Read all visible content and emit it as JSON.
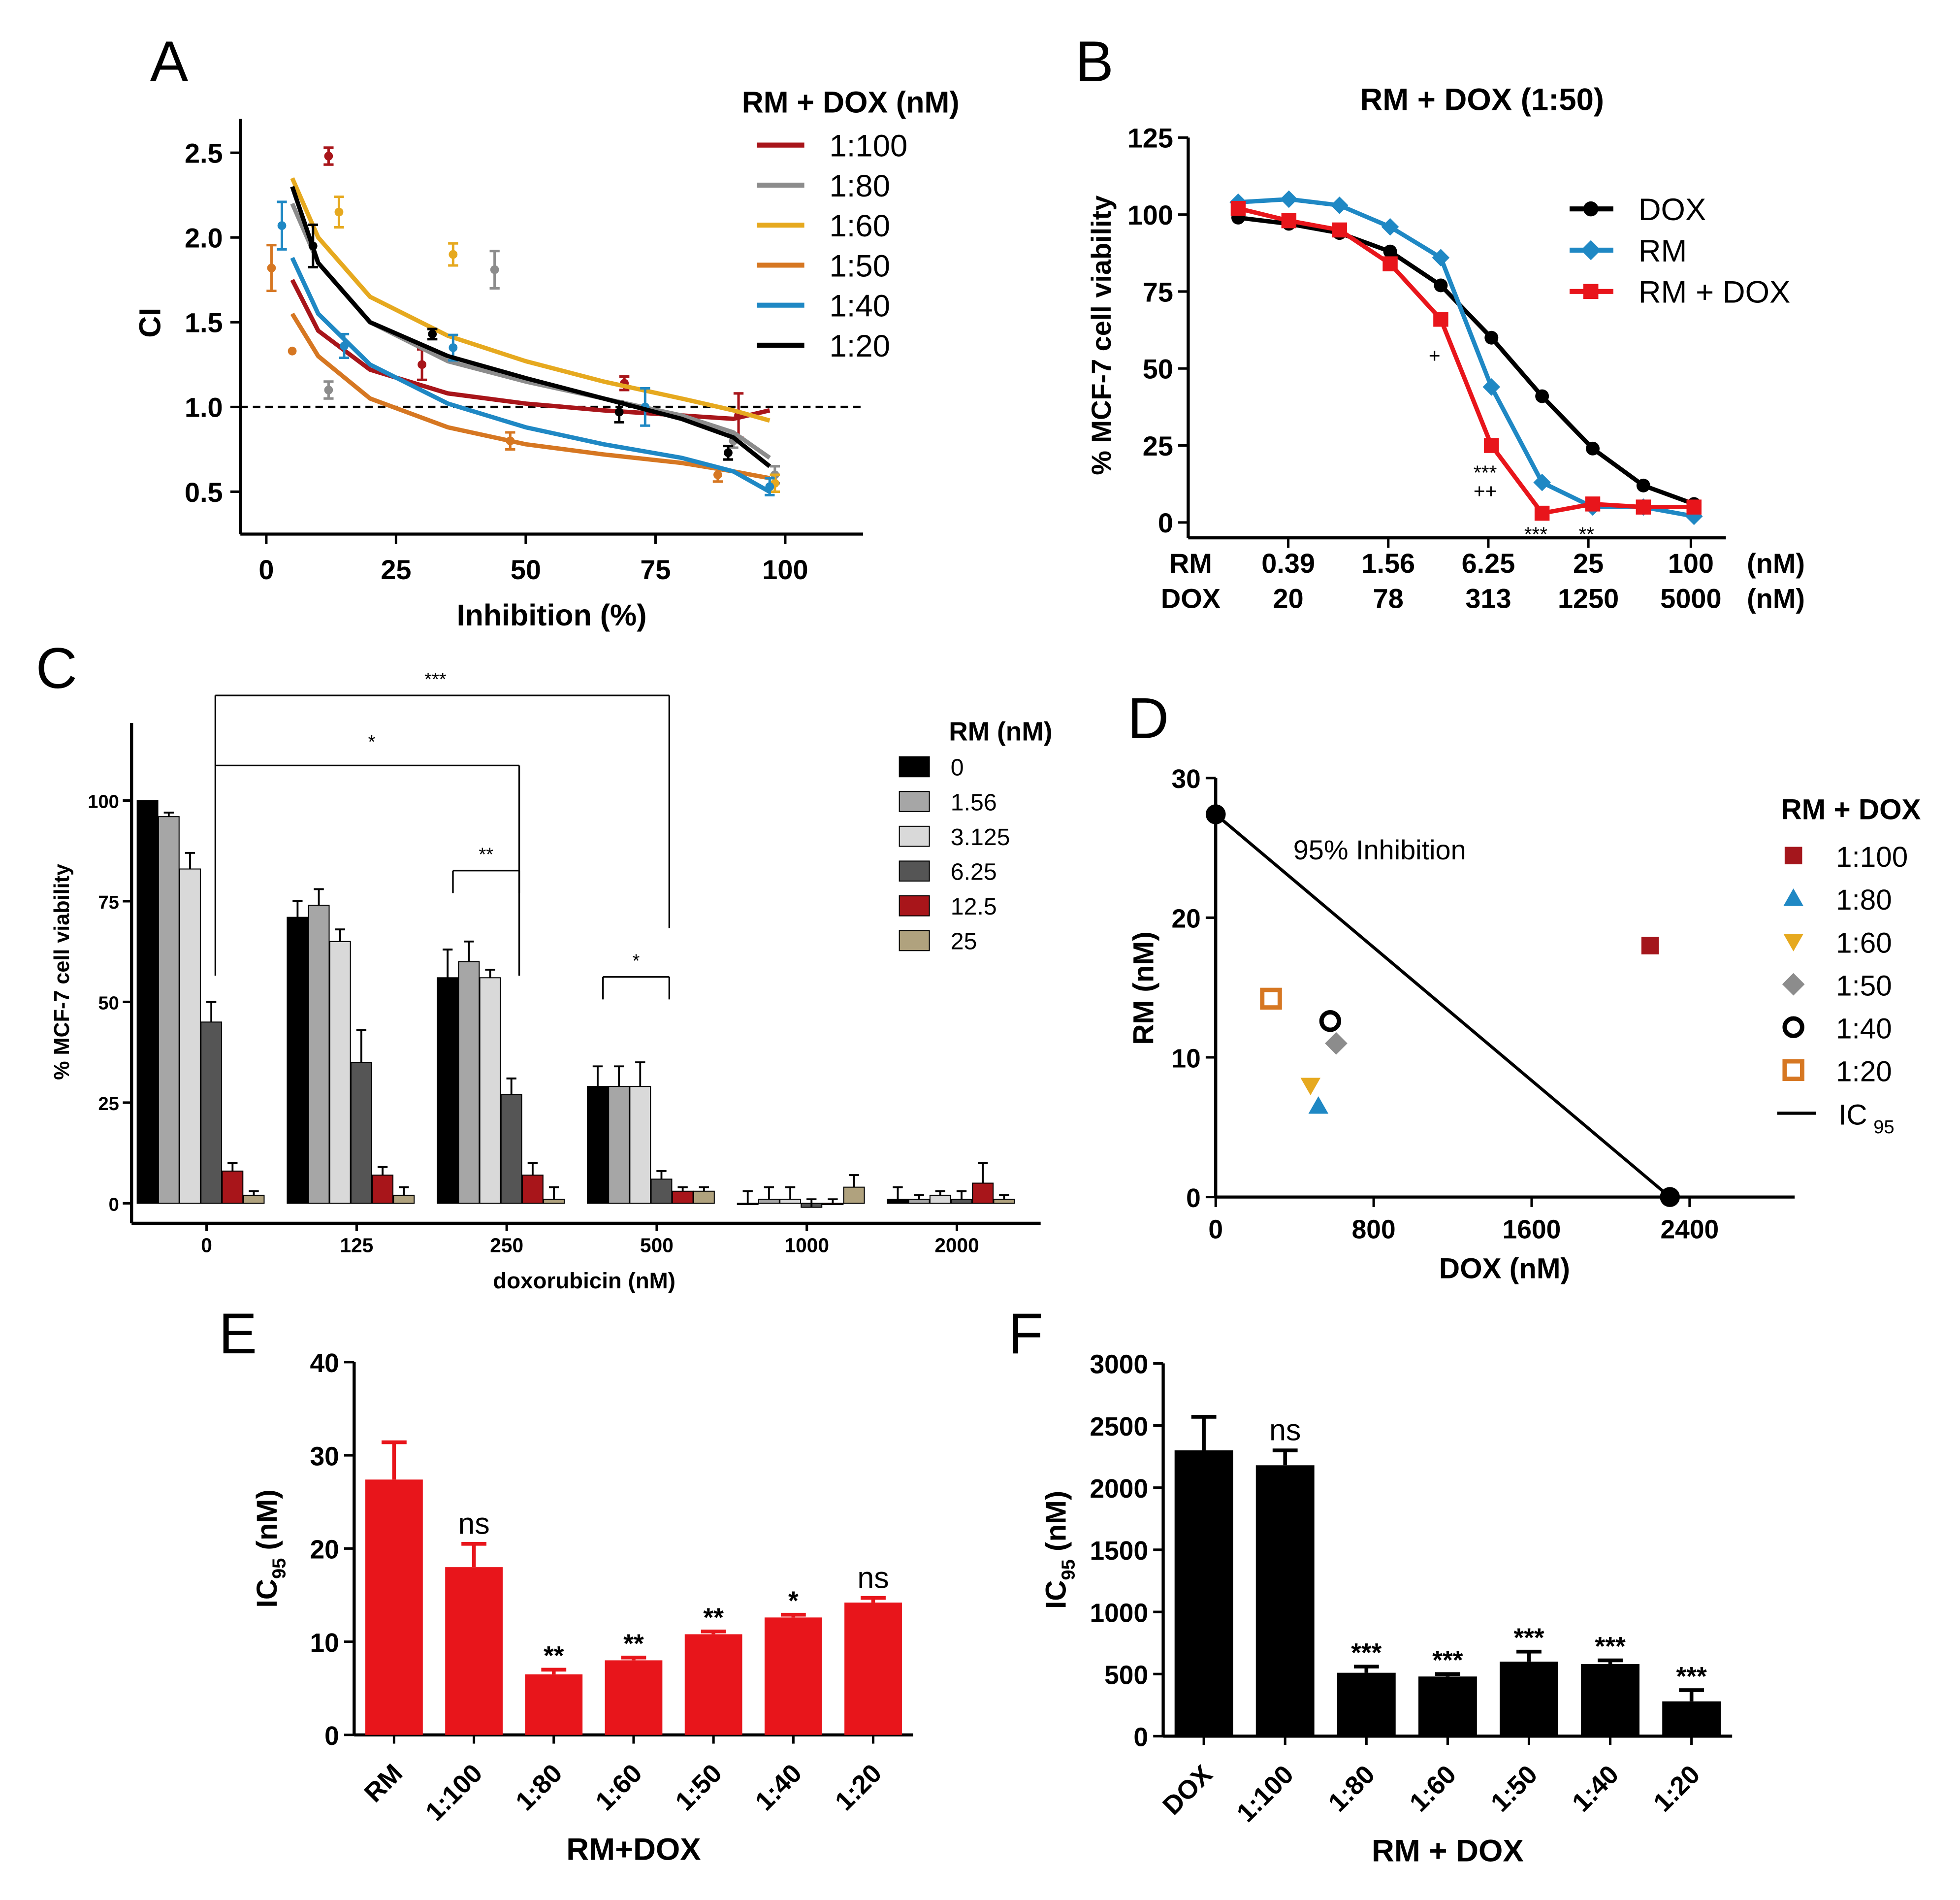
{
  "colors": {
    "black": "#000000",
    "gray": "#8c8c8c",
    "light_gray": "#d9d9d9",
    "mid_gray": "#a6a6a6",
    "dark_gray": "#555555",
    "dark_red": "#a8151a",
    "red": "#e8151b",
    "blue": "#1f88c4",
    "yellow": "#e6a91f",
    "orange": "#d67722",
    "tan": "#b0a27e",
    "square_red": "#a4161c",
    "tri_blue": "#1f88c4",
    "tri_yellow": "#e6a91f",
    "diamond_gray": "#8c8c8c",
    "sq_orange": "#d67722"
  },
  "chart_data": [
    {
      "panel": "A",
      "type": "scatter",
      "title": "",
      "xlabel": "Inhibition (%)",
      "ylabel": "CI",
      "xlim": [
        -5,
        115
      ],
      "ylim": [
        0.25,
        2.7
      ],
      "xticks": [
        "0",
        "25",
        "50",
        "75",
        "100"
      ],
      "yticks": [
        "0.5",
        "1.0",
        "1.5",
        "2.0",
        "2.5"
      ],
      "reference_line": 1.0,
      "legend_title": "RM + DOX (nM)",
      "series": [
        {
          "name": "1:100",
          "color": "#a8151a",
          "points": [
            [
              12,
              2.48,
              0.1
            ],
            [
              30,
              1.25,
              0.18
            ],
            [
              69,
              1.14,
              0.08
            ],
            [
              91,
              0.95,
              0.26
            ]
          ],
          "curve": [
            [
              5,
              1.75
            ],
            [
              10,
              1.45
            ],
            [
              20,
              1.22
            ],
            [
              35,
              1.08
            ],
            [
              50,
              1.02
            ],
            [
              65,
              0.98
            ],
            [
              80,
              0.95
            ],
            [
              90,
              0.93
            ],
            [
              97,
              0.98
            ]
          ]
        },
        {
          "name": "1:80",
          "color": "#8c8c8c",
          "points": [
            [
              12,
              1.1,
              0.1
            ],
            [
              44,
              1.81,
              0.22
            ],
            [
              90,
              0.8,
              0.08
            ],
            [
              98,
              0.6,
              0.1
            ]
          ],
          "curve": [
            [
              5,
              2.2
            ],
            [
              10,
              1.85
            ],
            [
              20,
              1.5
            ],
            [
              35,
              1.27
            ],
            [
              50,
              1.15
            ],
            [
              65,
              1.05
            ],
            [
              80,
              0.95
            ],
            [
              90,
              0.85
            ],
            [
              97,
              0.7
            ]
          ]
        },
        {
          "name": "1:60",
          "color": "#e6a91f",
          "points": [
            [
              14,
              2.15,
              0.18
            ],
            [
              36,
              1.9,
              0.13
            ],
            [
              98,
              0.55,
              0.1
            ]
          ],
          "curve": [
            [
              5,
              2.35
            ],
            [
              10,
              2.0
            ],
            [
              20,
              1.65
            ],
            [
              35,
              1.42
            ],
            [
              50,
              1.27
            ],
            [
              65,
              1.15
            ],
            [
              80,
              1.05
            ],
            [
              90,
              0.98
            ],
            [
              97,
              0.92
            ]
          ]
        },
        {
          "name": "1:50",
          "color": "#d67722",
          "points": [
            [
              1,
              1.82,
              0.27
            ],
            [
              5,
              1.33,
              0
            ],
            [
              47,
              0.8,
              0.1
            ],
            [
              87,
              0.6,
              0.08
            ]
          ],
          "curve": [
            [
              5,
              1.55
            ],
            [
              10,
              1.3
            ],
            [
              20,
              1.05
            ],
            [
              35,
              0.88
            ],
            [
              50,
              0.78
            ],
            [
              65,
              0.72
            ],
            [
              80,
              0.67
            ],
            [
              90,
              0.62
            ],
            [
              97,
              0.58
            ]
          ]
        },
        {
          "name": "1:40",
          "color": "#1f88c4",
          "points": [
            [
              3,
              2.07,
              0.28
            ],
            [
              15,
              1.36,
              0.14
            ],
            [
              36,
              1.35,
              0.15
            ],
            [
              73,
              1.0,
              0.22
            ],
            [
              97,
              0.53,
              0.1
            ]
          ],
          "curve": [
            [
              5,
              1.88
            ],
            [
              10,
              1.55
            ],
            [
              20,
              1.25
            ],
            [
              35,
              1.02
            ],
            [
              50,
              0.88
            ],
            [
              65,
              0.78
            ],
            [
              80,
              0.7
            ],
            [
              90,
              0.62
            ],
            [
              97,
              0.5
            ]
          ]
        },
        {
          "name": "1:20",
          "color": "#000000",
          "points": [
            [
              9,
              1.95,
              0.25
            ],
            [
              32,
              1.43,
              0.06
            ],
            [
              68,
              0.97,
              0.12
            ],
            [
              89,
              0.73,
              0.08
            ]
          ],
          "curve": [
            [
              5,
              2.3
            ],
            [
              10,
              1.85
            ],
            [
              20,
              1.5
            ],
            [
              35,
              1.3
            ],
            [
              50,
              1.17
            ],
            [
              65,
              1.05
            ],
            [
              80,
              0.93
            ],
            [
              90,
              0.82
            ],
            [
              97,
              0.65
            ]
          ]
        }
      ]
    },
    {
      "panel": "B",
      "type": "line",
      "title": "RM + DOX (1:50)",
      "xlabel": "",
      "ylabel": "% MCF-7 cell viability",
      "ylim": [
        -5,
        125
      ],
      "yticks": [
        "0",
        "25",
        "50",
        "75",
        "100",
        "125"
      ],
      "x_axis_rows": [
        {
          "label": "RM",
          "ticks": [
            "0.39",
            "1.56",
            "6.25",
            "25",
            "100"
          ],
          "unit": "(nM)"
        },
        {
          "label": "DOX",
          "ticks": [
            "20",
            "78",
            "313",
            "1250",
            "5000"
          ],
          "unit": "(nM)"
        }
      ],
      "series": [
        {
          "name": "DOX",
          "color": "#000000",
          "marker": "circle",
          "x": [
            0,
            1,
            2,
            3,
            4,
            5,
            6,
            7,
            8,
            9
          ],
          "values": [
            99,
            97,
            94,
            88,
            77,
            60,
            41,
            24,
            12,
            6
          ]
        },
        {
          "name": "RM",
          "color": "#1f88c4",
          "marker": "diamond",
          "x": [
            0,
            1,
            2,
            3,
            4,
            5,
            6,
            7,
            8,
            9
          ],
          "values": [
            104,
            105,
            103,
            96,
            86,
            44,
            13,
            5,
            5,
            2
          ]
        },
        {
          "name": "RM + DOX",
          "color": "#e8151b",
          "marker": "square",
          "x": [
            0,
            1,
            2,
            3,
            4,
            5,
            6,
            7,
            8,
            9
          ],
          "values": [
            102,
            98,
            95,
            84,
            66,
            25,
            3,
            6,
            5,
            5
          ]
        }
      ],
      "annotations": [
        {
          "text": "+",
          "x": 4,
          "y": 52
        },
        {
          "text": "***",
          "x": 5,
          "y": 14
        },
        {
          "text": "++",
          "x": 5,
          "y": 8
        },
        {
          "text": "***",
          "x": 6,
          "y": -6
        },
        {
          "text": "**",
          "x": 7,
          "y": -6
        }
      ]
    },
    {
      "panel": "C",
      "type": "bar",
      "xlabel": "doxorubicin (nM)",
      "ylabel": "% MCF-7 cell viability",
      "ylim": [
        -5,
        115
      ],
      "yticks": [
        "0",
        "25",
        "50",
        "75",
        "100"
      ],
      "categories": [
        "0",
        "125",
        "250",
        "500",
        "1000",
        "2000"
      ],
      "legend_title": "RM (nM)",
      "series": [
        {
          "name": "0",
          "color": "#000000",
          "values": [
            100,
            71,
            56,
            29,
            0,
            1
          ],
          "errors": [
            0,
            4,
            7,
            5,
            3,
            3
          ]
        },
        {
          "name": "1.56",
          "color": "#a6a6a6",
          "values": [
            96,
            74,
            60,
            29,
            1,
            1
          ],
          "errors": [
            1,
            4,
            5,
            5,
            3,
            1
          ]
        },
        {
          "name": "3.125",
          "color": "#d9d9d9",
          "values": [
            83,
            65,
            56,
            29,
            1,
            2
          ],
          "errors": [
            4,
            3,
            2,
            6,
            3,
            1
          ]
        },
        {
          "name": "6.25",
          "color": "#555555",
          "values": [
            45,
            35,
            27,
            6,
            -1,
            1
          ],
          "errors": [
            5,
            8,
            4,
            2,
            2,
            2
          ]
        },
        {
          "name": "12.5",
          "color": "#a8151a",
          "values": [
            8,
            7,
            7,
            3,
            0,
            5
          ],
          "errors": [
            2,
            2,
            3,
            1,
            1,
            5
          ]
        },
        {
          "name": "25",
          "color": "#b0a27e",
          "values": [
            2,
            2,
            1,
            3,
            4,
            1
          ],
          "errors": [
            1,
            2,
            3,
            1,
            3,
            1
          ]
        }
      ],
      "significance": [
        {
          "label": "***",
          "from": 0,
          "to": 3,
          "level": 3
        },
        {
          "label": "*",
          "from": 0,
          "to": 2,
          "level": 2
        },
        {
          "label": "**",
          "from": 2,
          "to": 2,
          "level": 1
        },
        {
          "label": "*",
          "from": 3,
          "to": 3,
          "level": 1
        }
      ]
    },
    {
      "panel": "D",
      "type": "scatter",
      "title": "",
      "xlabel": "DOX (nM)",
      "ylabel": "RM (nM)",
      "xlim": [
        0,
        3000
      ],
      "ylim": [
        0,
        30
      ],
      "xticks": [
        "0",
        "800",
        "1600",
        "2400"
      ],
      "yticks": [
        "0",
        "10",
        "20",
        "30"
      ],
      "line_label": "95% Inhibition",
      "line": [
        [
          0,
          27.4
        ],
        [
          2300,
          0
        ]
      ],
      "legend_title": "RM + DOX",
      "series": [
        {
          "name": "1:100",
          "marker": "square",
          "color": "#a4161c",
          "x": 2200,
          "y": 18
        },
        {
          "name": "1:80",
          "marker": "triangle-up",
          "color": "#1f88c4",
          "x": 520,
          "y": 6.5
        },
        {
          "name": "1:60",
          "marker": "triangle-down",
          "color": "#e6a91f",
          "x": 480,
          "y": 8
        },
        {
          "name": "1:50",
          "marker": "diamond",
          "color": "#8c8c8c",
          "x": 610,
          "y": 11
        },
        {
          "name": "1:40",
          "marker": "open-circle",
          "color": "#000000",
          "x": 580,
          "y": 12.6
        },
        {
          "name": "1:20",
          "marker": "open-square",
          "color": "#d67722",
          "x": 280,
          "y": 14.2
        }
      ],
      "line_legend": "IC",
      "line_legend_sub": "95"
    },
    {
      "panel": "E",
      "type": "bar",
      "xlabel": "RM+DOX",
      "ylabel": "IC",
      "ylabel_sub": "95",
      "ylabel_unit": " (nM)",
      "ylim": [
        0,
        40
      ],
      "yticks": [
        "0",
        "10",
        "20",
        "30",
        "40"
      ],
      "categories": [
        "RM",
        "1:100",
        "1:80",
        "1:60",
        "1:50",
        "1:40",
        "1:20"
      ],
      "values": [
        27.4,
        18,
        6.5,
        8,
        10.8,
        12.6,
        14.2
      ],
      "errors": [
        4,
        2.5,
        0.5,
        0.3,
        0.3,
        0.3,
        0.5
      ],
      "annotations": [
        "",
        "ns",
        "**",
        "**",
        "**",
        "*",
        "ns"
      ],
      "color": "#e8151b"
    },
    {
      "panel": "F",
      "type": "bar",
      "xlabel": "RM + DOX",
      "ylabel": "IC",
      "ylabel_sub": "95",
      "ylabel_unit": " (nM)",
      "ylim": [
        0,
        3000
      ],
      "yticks": [
        "0",
        "500",
        "1000",
        "1500",
        "2000",
        "2500",
        "3000"
      ],
      "categories": [
        "DOX",
        "1:100",
        "1:80",
        "1:60",
        "1:50",
        "1:40",
        "1:20"
      ],
      "values": [
        2300,
        2180,
        510,
        480,
        600,
        580,
        280
      ],
      "errors": [
        270,
        120,
        50,
        20,
        80,
        30,
        90
      ],
      "annotations": [
        "",
        "ns",
        "***",
        "***",
        "***",
        "***",
        "***"
      ],
      "color": "#000000"
    }
  ],
  "panel_labels": [
    "A",
    "B",
    "C",
    "D",
    "E",
    "F"
  ]
}
